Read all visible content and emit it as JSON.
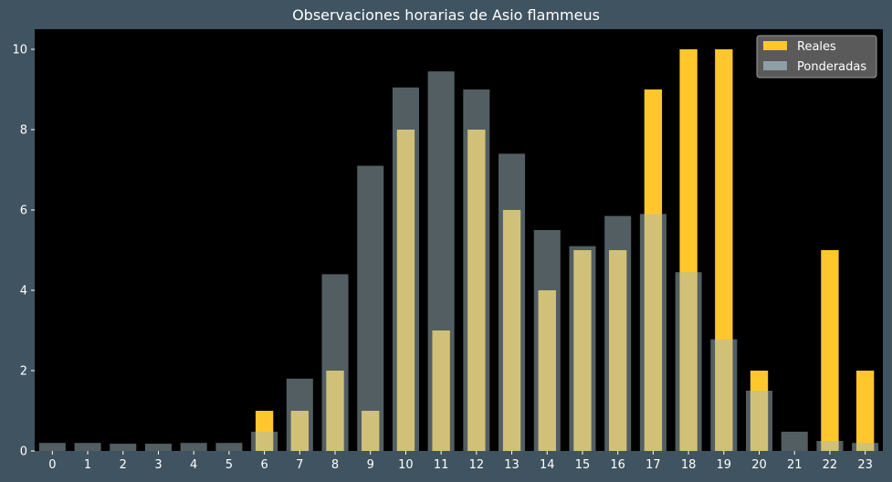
{
  "chart_data": {
    "type": "bar",
    "title": "Observaciones horarias de Asio flammeus",
    "xlabel": "",
    "ylabel": "",
    "categories": [
      "0",
      "1",
      "2",
      "3",
      "4",
      "5",
      "6",
      "7",
      "8",
      "9",
      "10",
      "11",
      "12",
      "13",
      "14",
      "15",
      "16",
      "17",
      "18",
      "19",
      "20",
      "21",
      "22",
      "23"
    ],
    "ylim": [
      0,
      10.5
    ],
    "yticks": [
      0,
      2,
      4,
      6,
      8,
      10
    ],
    "grid": false,
    "legend_position": "top-right",
    "background": "#000000",
    "figure_background": "#3f5360",
    "series": [
      {
        "name": "Reales",
        "color": "#ffc72c",
        "values": [
          0,
          0,
          0,
          0,
          0,
          0,
          1,
          1,
          2,
          1,
          8,
          3,
          8,
          6,
          4,
          5,
          5,
          9,
          10,
          10,
          2,
          0,
          5,
          2
        ]
      },
      {
        "name": "Ponderadas",
        "color": "#a4bcc4",
        "values": [
          0.2,
          0.2,
          0.18,
          0.18,
          0.2,
          0.2,
          0.48,
          1.8,
          4.4,
          7.1,
          9.05,
          9.45,
          9.0,
          7.4,
          5.5,
          5.1,
          5.85,
          5.9,
          4.45,
          2.78,
          1.5,
          0.48,
          0.25,
          0.2
        ]
      }
    ]
  }
}
